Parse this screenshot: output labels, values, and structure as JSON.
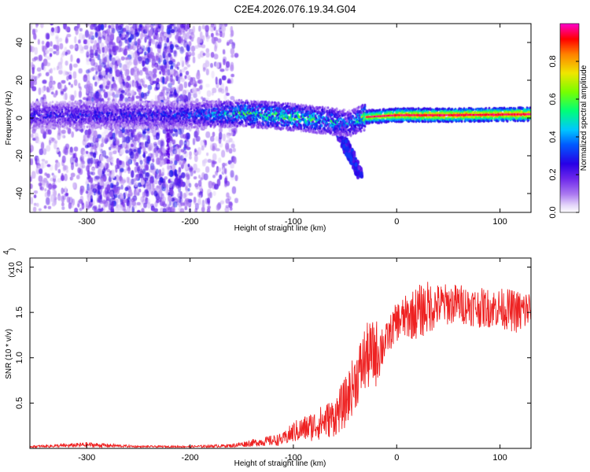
{
  "title": "C2E4.2026.076.19.34.G04",
  "colors": {
    "snr_line": "#ee2222",
    "frame": "#000000",
    "spectro_cmap": [
      "#ffffff",
      "#d9c8f6",
      "#9a5cf0",
      "#5a00e8",
      "#0000ff",
      "#00c8ff",
      "#00ff60",
      "#c8ff00",
      "#ffc800",
      "#ff0000",
      "#ff00cc"
    ]
  },
  "chart_data": [
    {
      "type": "heatmap",
      "title": "C2E4.2026.076.19.34.G04",
      "xlabel": "Height of straight line (km)",
      "ylabel": "Frequency (Hz)",
      "xlim": [
        -355,
        130
      ],
      "ylim": [
        -50,
        50
      ],
      "xticks": [
        -300,
        -200,
        -100,
        0,
        100
      ],
      "yticks": [
        -40,
        -20,
        0,
        20,
        40
      ],
      "xtick_labels": [
        "-300",
        "-200",
        "-100",
        "0",
        "100"
      ],
      "ytick_labels": [
        "-40",
        "-20",
        "0",
        "20",
        "40"
      ],
      "colorbar": {
        "label": "Normalized spectral amplitude",
        "range": [
          0,
          1
        ],
        "ticks": [
          0.0,
          0.2,
          0.4,
          0.6,
          0.8
        ],
        "tick_labels": [
          "0.0",
          "0.2",
          "0.4",
          "0.6",
          "0.8"
        ]
      },
      "ridge": {
        "description_points_x": [
          -355,
          -300,
          -250,
          -200,
          -150,
          -100,
          -60,
          -45,
          -30,
          0,
          50,
          130
        ],
        "center_freq": [
          1.5,
          1.5,
          1.5,
          1.5,
          2.5,
          0.5,
          -2.0,
          -3.0,
          0.5,
          1.5,
          1.5,
          2.0
        ],
        "peak_amplitude": [
          0.3,
          0.3,
          0.3,
          0.35,
          0.55,
          0.6,
          0.5,
          0.4,
          0.75,
          0.9,
          0.95,
          0.95
        ]
      },
      "noise_regions": [
        {
          "x_from": -355,
          "x_to": -155,
          "level": 0.2
        },
        {
          "x_from": -300,
          "x_to": -200,
          "level": 0.3
        }
      ],
      "tail": {
        "x_from": -60,
        "x_to": -35,
        "freq_from": -3,
        "freq_to": -30
      }
    },
    {
      "type": "line",
      "xlabel": "Height of straight line (km)",
      "ylabel": "SNR (10 * v/v)",
      "multiplier_label": "(x10",
      "multiplier_exp": "4",
      "multiplier_close": ")",
      "xlim": [
        -355,
        130
      ],
      "ylim": [
        0,
        2.1
      ],
      "xticks": [
        -300,
        -200,
        -100,
        0,
        100
      ],
      "yticks": [
        0.5,
        1.0,
        1.5,
        2.0
      ],
      "xtick_labels": [
        "-300",
        "-200",
        "-100",
        "0",
        "100"
      ],
      "ytick_labels": [
        "0.5",
        "1.0",
        "1.5",
        "2.0"
      ],
      "series": [
        {
          "name": "SNR",
          "x": [
            -355,
            -320,
            -300,
            -250,
            -200,
            -160,
            -140,
            -110,
            -100,
            -80,
            -60,
            -50,
            -40,
            -30,
            -20,
            -15,
            -10,
            0,
            10,
            20,
            30,
            40,
            60,
            80,
            100,
            120,
            130
          ],
          "y": [
            0.02,
            0.03,
            0.04,
            0.02,
            0.02,
            0.03,
            0.06,
            0.1,
            0.18,
            0.25,
            0.35,
            0.5,
            0.75,
            1.0,
            1.05,
            1.12,
            1.2,
            1.4,
            1.45,
            1.5,
            1.55,
            1.58,
            1.6,
            1.55,
            1.55,
            1.5,
            1.55
          ],
          "noise": [
            0.01,
            0.02,
            0.03,
            0.01,
            0.01,
            0.02,
            0.04,
            0.07,
            0.12,
            0.17,
            0.22,
            0.28,
            0.32,
            0.38,
            0.38,
            0.3,
            0.18,
            0.22,
            0.25,
            0.3,
            0.3,
            0.24,
            0.22,
            0.22,
            0.22,
            0.25,
            0.22
          ],
          "color": "#ee2222"
        }
      ]
    }
  ]
}
